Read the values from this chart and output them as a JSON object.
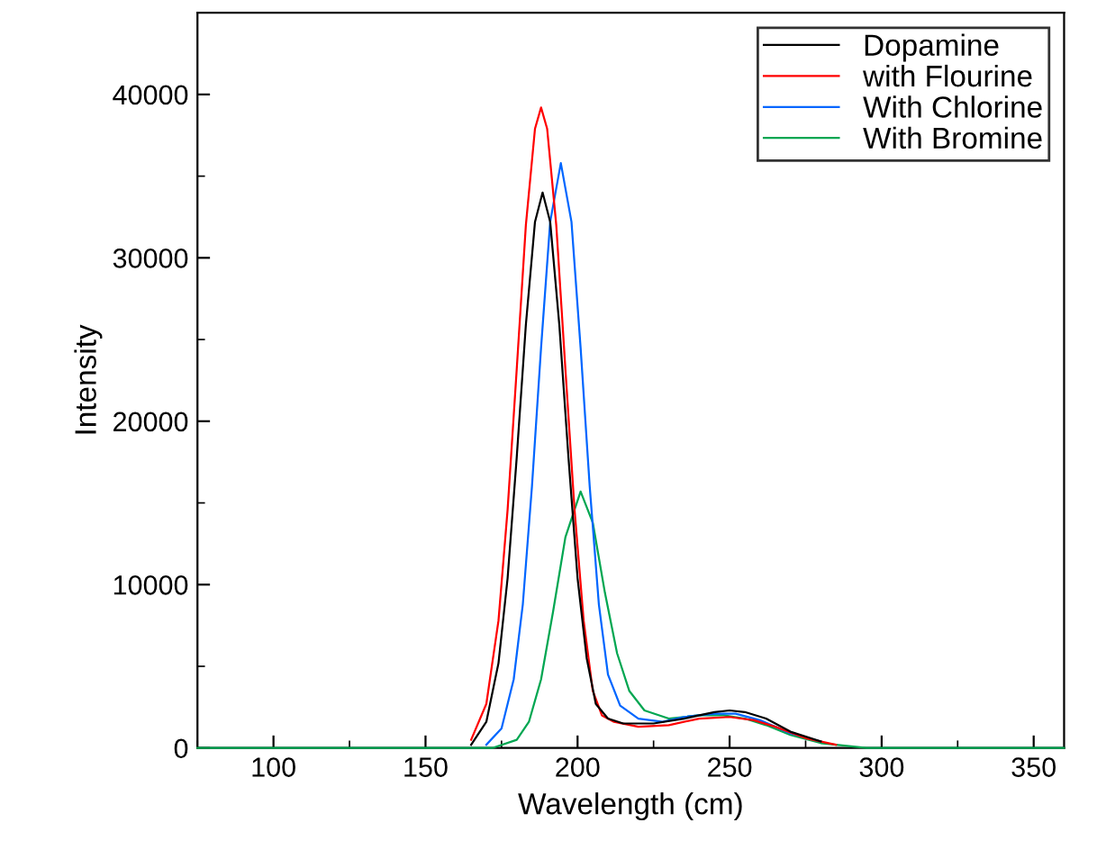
{
  "chart_data": {
    "type": "line",
    "xlabel": "Wavelength (cm)",
    "ylabel": "Intensity",
    "series": [
      {
        "name": "Dopamine",
        "color": "#000000",
        "x": [
          165,
          170,
          174,
          177,
          180,
          183,
          186,
          188.5,
          191,
          194,
          197,
          200,
          203,
          206,
          210,
          215,
          225,
          235,
          245,
          250,
          255,
          262,
          270,
          280
        ],
        "values": [
          200,
          1600,
          5200,
          10400,
          17800,
          25900,
          32200,
          34000,
          32200,
          25900,
          17800,
          10400,
          5500,
          2700,
          1800,
          1500,
          1500,
          1800,
          2200,
          2300,
          2200,
          1800,
          1000,
          400
        ]
      },
      {
        "name": "with Flourine",
        "color": "#ff0000",
        "x": [
          165,
          170,
          174,
          177,
          180,
          183,
          186,
          188,
          190,
          193,
          196,
          199,
          202,
          205,
          208,
          212,
          220,
          230,
          240,
          250,
          258,
          265,
          275,
          285
        ],
        "values": [
          500,
          2700,
          7800,
          14600,
          23200,
          32000,
          37900,
          39200,
          37900,
          32000,
          23200,
          14600,
          7800,
          3500,
          2000,
          1600,
          1300,
          1400,
          1800,
          1900,
          1700,
          1300,
          600,
          200
        ]
      },
      {
        "name": "With Chlorine",
        "color": "#0066ff",
        "x": [
          170,
          175,
          179,
          182,
          185,
          188,
          191,
          194.5,
          198,
          201,
          204,
          207,
          210,
          214,
          220,
          228,
          235,
          245,
          252,
          260,
          270,
          280
        ],
        "values": [
          200,
          1200,
          4200,
          8800,
          16000,
          24500,
          32200,
          35800,
          32200,
          24500,
          16000,
          8800,
          4500,
          2600,
          1800,
          1600,
          1900,
          2100,
          2100,
          1700,
          900,
          400
        ]
      },
      {
        "name": "With Bromine",
        "color": "#00a651",
        "x": [
          75,
          172,
          180,
          184,
          188,
          192,
          196,
          201,
          205,
          209,
          213,
          217,
          222,
          230,
          240,
          248,
          255,
          262,
          270,
          280,
          295,
          360
        ],
        "values": [
          0,
          0,
          500,
          1600,
          4200,
          8400,
          12900,
          15700,
          13800,
          9500,
          5800,
          3500,
          2300,
          1800,
          2000,
          2000,
          1800,
          1400,
          800,
          300,
          0,
          0
        ]
      }
    ],
    "xlim": [
      75,
      360
    ],
    "xticks": [
      100,
      150,
      200,
      250,
      300,
      350
    ],
    "ylim": [
      0,
      45000
    ],
    "yticks": [
      0,
      10000,
      20000,
      30000,
      40000
    ],
    "grid": false,
    "legend": "top right",
    "marker": "none",
    "line_style": "solid"
  }
}
